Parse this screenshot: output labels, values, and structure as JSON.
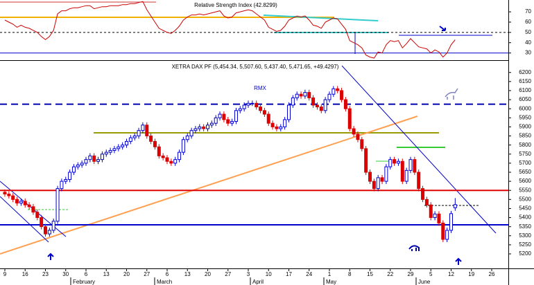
{
  "chart_data": [
    {
      "type": "line",
      "title": "Relative Strength Index (42.8299)",
      "color": "#cc0000",
      "ylim": [
        23,
        81.5
      ],
      "yticks": [
        30,
        40,
        50,
        60,
        70
      ],
      "levels": [
        {
          "value": 50,
          "color": "#000000",
          "dashed": true
        },
        {
          "value": 30,
          "color": "#0000cc",
          "dashed": false
        }
      ],
      "values": [
        62,
        60,
        58,
        55,
        57,
        55,
        54,
        52,
        50,
        46,
        43,
        46,
        52,
        68,
        71,
        71,
        73,
        74,
        74,
        75,
        76,
        76,
        73,
        74,
        75,
        75,
        76,
        76,
        76,
        77,
        77,
        78,
        78,
        79,
        80,
        72,
        66,
        60,
        54,
        52,
        50,
        49,
        52,
        56,
        62,
        65,
        67,
        67,
        68,
        67,
        68,
        69,
        70,
        71,
        66,
        64,
        65,
        69,
        70,
        71,
        72,
        71,
        68,
        65,
        62,
        55,
        53,
        51,
        52,
        56,
        62,
        64,
        66,
        65,
        66,
        62,
        57,
        56,
        54,
        60,
        62,
        64,
        63,
        58,
        53,
        42,
        40,
        38,
        35,
        28,
        26,
        25,
        31,
        30,
        38,
        42,
        41,
        42,
        35,
        39,
        44,
        40,
        36,
        35,
        34,
        30,
        33,
        31,
        26,
        30,
        38,
        42.8299
      ]
    },
    {
      "type": "candlestick",
      "title": "XETRA DAX PF (5,454.34, 5,507.60, 5,437.40, 5,471.65, +49.4297)",
      "annotation": "RMX",
      "up_color": "#0000cc",
      "down_color": "#dd0000",
      "ylim": [
        5120,
        6260
      ],
      "yticks": [
        5200,
        5250,
        5300,
        5350,
        5400,
        5450,
        5500,
        5550,
        5600,
        5650,
        5700,
        5750,
        5800,
        5850,
        5900,
        5950,
        6000,
        6050,
        6100,
        6150,
        6200
      ],
      "levels": [
        {
          "value": 5550,
          "color": "#e00000",
          "dashed": false
        },
        {
          "value": 5360,
          "color": "#0000cc",
          "dashed": false
        },
        {
          "value": 6025,
          "color": "#0000aa",
          "dashed": true
        }
      ],
      "week_labels": [
        "9",
        "16",
        "23",
        "30",
        "6",
        "13",
        "20",
        "27",
        "6",
        "13",
        "20",
        "27",
        "3",
        "10",
        "17",
        "24",
        "1",
        "8",
        "15",
        "22",
        "29",
        "5",
        "12",
        "19",
        "26"
      ],
      "month_labels": [
        "February",
        "March",
        "April",
        "May",
        "June"
      ],
      "ohlc": [
        [
          5540,
          5555,
          5515,
          5530
        ],
        [
          5530,
          5545,
          5505,
          5520
        ],
        [
          5520,
          5535,
          5485,
          5500
        ],
        [
          5500,
          5515,
          5465,
          5480
        ],
        [
          5480,
          5505,
          5465,
          5490
        ],
        [
          5490,
          5505,
          5455,
          5470
        ],
        [
          5470,
          5485,
          5445,
          5460
        ],
        [
          5460,
          5475,
          5415,
          5430
        ],
        [
          5430,
          5445,
          5385,
          5400
        ],
        [
          5400,
          5415,
          5335,
          5350
        ],
        [
          5350,
          5365,
          5295,
          5310
        ],
        [
          5310,
          5345,
          5295,
          5330
        ],
        [
          5330,
          5395,
          5315,
          5380
        ],
        [
          5380,
          5575,
          5365,
          5560
        ],
        [
          5560,
          5615,
          5545,
          5600
        ],
        [
          5600,
          5625,
          5585,
          5610
        ],
        [
          5610,
          5665,
          5595,
          5650
        ],
        [
          5650,
          5695,
          5635,
          5680
        ],
        [
          5680,
          5705,
          5665,
          5690
        ],
        [
          5690,
          5715,
          5675,
          5700
        ],
        [
          5700,
          5735,
          5685,
          5720
        ],
        [
          5720,
          5755,
          5705,
          5740
        ],
        [
          5740,
          5755,
          5695,
          5710
        ],
        [
          5710,
          5735,
          5695,
          5720
        ],
        [
          5720,
          5765,
          5705,
          5750
        ],
        [
          5750,
          5775,
          5735,
          5760
        ],
        [
          5760,
          5785,
          5745,
          5770
        ],
        [
          5770,
          5795,
          5755,
          5780
        ],
        [
          5780,
          5805,
          5765,
          5790
        ],
        [
          5790,
          5815,
          5775,
          5800
        ],
        [
          5800,
          5835,
          5785,
          5820
        ],
        [
          5820,
          5855,
          5805,
          5840
        ],
        [
          5840,
          5865,
          5825,
          5850
        ],
        [
          5850,
          5895,
          5835,
          5880
        ],
        [
          5880,
          5925,
          5865,
          5910
        ],
        [
          5910,
          5925,
          5835,
          5850
        ],
        [
          5850,
          5865,
          5805,
          5820
        ],
        [
          5820,
          5835,
          5775,
          5790
        ],
        [
          5790,
          5805,
          5725,
          5740
        ],
        [
          5740,
          5755,
          5715,
          5730
        ],
        [
          5730,
          5745,
          5695,
          5710
        ],
        [
          5710,
          5725,
          5685,
          5700
        ],
        [
          5700,
          5735,
          5685,
          5720
        ],
        [
          5720,
          5775,
          5705,
          5760
        ],
        [
          5760,
          5845,
          5745,
          5830
        ],
        [
          5830,
          5865,
          5815,
          5850
        ],
        [
          5850,
          5895,
          5835,
          5880
        ],
        [
          5880,
          5905,
          5865,
          5890
        ],
        [
          5890,
          5915,
          5875,
          5900
        ],
        [
          5900,
          5915,
          5875,
          5890
        ],
        [
          5890,
          5925,
          5875,
          5910
        ],
        [
          5910,
          5935,
          5895,
          5920
        ],
        [
          5920,
          5965,
          5905,
          5950
        ],
        [
          5950,
          5985,
          5935,
          5970
        ],
        [
          5970,
          5985,
          5925,
          5940
        ],
        [
          5940,
          5955,
          5905,
          5920
        ],
        [
          5920,
          5945,
          5905,
          5930
        ],
        [
          5930,
          6005,
          5915,
          5990
        ],
        [
          5990,
          6015,
          5975,
          6000
        ],
        [
          6000,
          6035,
          5985,
          6020
        ],
        [
          6020,
          6045,
          6005,
          6030
        ],
        [
          6030,
          6045,
          6015,
          6030
        ],
        [
          6030,
          6045,
          5995,
          6010
        ],
        [
          6010,
          6025,
          5975,
          5990
        ],
        [
          5990,
          6005,
          5955,
          5970
        ],
        [
          5970,
          5985,
          5905,
          5920
        ],
        [
          5920,
          5935,
          5885,
          5900
        ],
        [
          5900,
          5915,
          5875,
          5890
        ],
        [
          5890,
          5915,
          5875,
          5900
        ],
        [
          5900,
          5955,
          5885,
          5940
        ],
        [
          5940,
          6035,
          5925,
          6020
        ],
        [
          6020,
          6075,
          6005,
          6060
        ],
        [
          6060,
          6095,
          6045,
          6080
        ],
        [
          6080,
          6095,
          6055,
          6070
        ],
        [
          6070,
          6105,
          6055,
          6090
        ],
        [
          6090,
          6105,
          6045,
          6060
        ],
        [
          6060,
          6075,
          6005,
          6020
        ],
        [
          6020,
          6035,
          5995,
          6010
        ],
        [
          6010,
          6025,
          5975,
          5990
        ],
        [
          5990,
          6065,
          5975,
          6050
        ],
        [
          6050,
          6095,
          6035,
          6080
        ],
        [
          6080,
          6125,
          6065,
          6110
        ],
        [
          6110,
          6125,
          6085,
          6100
        ],
        [
          6100,
          6115,
          6035,
          6050
        ],
        [
          6050,
          6065,
          5985,
          6000
        ],
        [
          6000,
          6015,
          5875,
          5890
        ],
        [
          5890,
          5905,
          5845,
          5860
        ],
        [
          5860,
          5875,
          5815,
          5830
        ],
        [
          5830,
          5845,
          5765,
          5780
        ],
        [
          5780,
          5795,
          5635,
          5650
        ],
        [
          5650,
          5665,
          5585,
          5600
        ],
        [
          5600,
          5615,
          5545,
          5560
        ],
        [
          5560,
          5635,
          5545,
          5620
        ],
        [
          5620,
          5635,
          5585,
          5600
        ],
        [
          5600,
          5695,
          5585,
          5680
        ],
        [
          5680,
          5735,
          5665,
          5720
        ],
        [
          5720,
          5735,
          5685,
          5700
        ],
        [
          5700,
          5725,
          5685,
          5710
        ],
        [
          5710,
          5725,
          5585,
          5600
        ],
        [
          5600,
          5675,
          5585,
          5660
        ],
        [
          5660,
          5735,
          5645,
          5720
        ],
        [
          5720,
          5735,
          5635,
          5650
        ],
        [
          5650,
          5665,
          5545,
          5560
        ],
        [
          5560,
          5575,
          5485,
          5500
        ],
        [
          5500,
          5515,
          5455,
          5470
        ],
        [
          5470,
          5485,
          5385,
          5400
        ],
        [
          5400,
          5435,
          5385,
          5420
        ],
        [
          5420,
          5435,
          5355,
          5370
        ],
        [
          5370,
          5385,
          5265,
          5280
        ],
        [
          5280,
          5345,
          5265,
          5330
        ],
        [
          5330,
          5437,
          5315,
          5422
        ],
        [
          5454.34,
          5507.6,
          5437.4,
          5471.65
        ]
      ]
    }
  ]
}
